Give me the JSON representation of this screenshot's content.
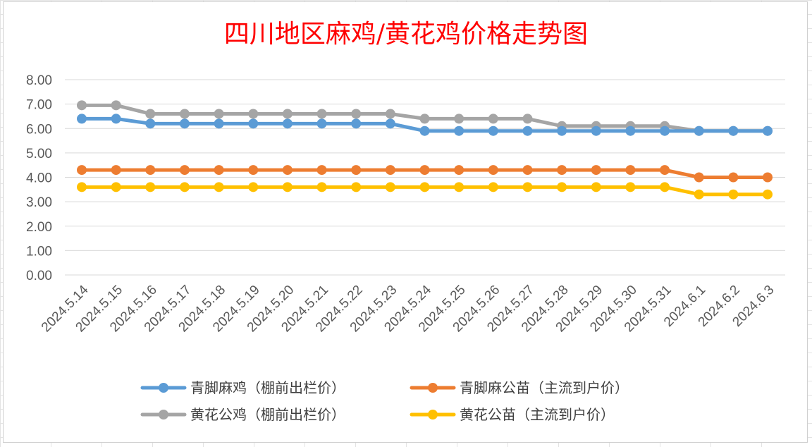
{
  "chart_data": {
    "type": "line",
    "title": "四川地区麻鸡/黄花鸡价格走势图",
    "xlabel": "",
    "ylabel": "",
    "ylim": [
      0,
      8
    ],
    "yticks": [
      "0.00",
      "1.00",
      "2.00",
      "3.00",
      "4.00",
      "5.00",
      "6.00",
      "7.00",
      "8.00"
    ],
    "grid": true,
    "legend_position": "bottom",
    "categories": [
      "2024.5.14",
      "2024.5.15",
      "2024.5.16",
      "2024.5.17",
      "2024.5.18",
      "2024.5.19",
      "2024.5.20",
      "2024.5.21",
      "2024.5.22",
      "2024.5.23",
      "2024.5.24",
      "2024.5.25",
      "2024.5.26",
      "2024.5.27",
      "2024.5.28",
      "2024.5.29",
      "2024.5.30",
      "2024.5.31",
      "2024.6.1",
      "2024.6.2",
      "2024.6.3"
    ],
    "series": [
      {
        "name": "青脚麻鸡（棚前出栏价）",
        "color": "#5b9bd5",
        "values": [
          6.4,
          6.4,
          6.2,
          6.2,
          6.2,
          6.2,
          6.2,
          6.2,
          6.2,
          6.2,
          5.9,
          5.9,
          5.9,
          5.9,
          5.9,
          5.9,
          5.9,
          5.9,
          5.9,
          5.9,
          5.9
        ]
      },
      {
        "name": "青脚麻公苗（主流到户价）",
        "color": "#ed7d31",
        "values": [
          4.3,
          4.3,
          4.3,
          4.3,
          4.3,
          4.3,
          4.3,
          4.3,
          4.3,
          4.3,
          4.3,
          4.3,
          4.3,
          4.3,
          4.3,
          4.3,
          4.3,
          4.3,
          4.0,
          4.0,
          4.0
        ]
      },
      {
        "name": "黄花公鸡（棚前出栏价）",
        "color": "#a5a5a5",
        "values": [
          6.95,
          6.95,
          6.6,
          6.6,
          6.6,
          6.6,
          6.6,
          6.6,
          6.6,
          6.6,
          6.4,
          6.4,
          6.4,
          6.4,
          6.1,
          6.1,
          6.1,
          6.1,
          5.9,
          5.9,
          5.9
        ]
      },
      {
        "name": "黄花公苗（主流到户价）",
        "color": "#ffc000",
        "values": [
          3.6,
          3.6,
          3.6,
          3.6,
          3.6,
          3.6,
          3.6,
          3.6,
          3.6,
          3.6,
          3.6,
          3.6,
          3.6,
          3.6,
          3.6,
          3.6,
          3.6,
          3.6,
          3.3,
          3.3,
          3.3
        ]
      }
    ]
  }
}
